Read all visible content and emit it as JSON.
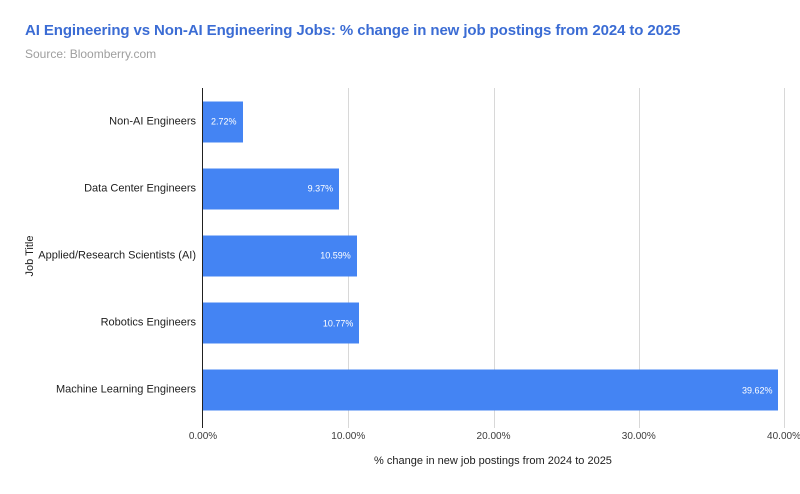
{
  "header": {
    "title": "AI Engineering vs Non-AI Engineering Jobs: % change in new job postings from 2024 to 2025",
    "source": "Source: Bloomberry.com"
  },
  "chart_data": {
    "type": "bar",
    "orientation": "horizontal",
    "title": "AI Engineering vs Non-AI Engineering Jobs: % change in new job postings from 2024 to 2025",
    "subtitle": "Source: Bloomberry.com",
    "categories": [
      "Non-AI Engineers",
      "Data Center Engineers",
      "Applied/Research Scientists (AI)",
      "Robotics Engineers",
      "Machine Learning Engineers"
    ],
    "values": [
      2.72,
      9.37,
      10.59,
      10.77,
      39.62
    ],
    "value_labels": [
      "2.72%",
      "9.37%",
      "10.59%",
      "10.77%",
      "39.62%"
    ],
    "xlabel": "% change in new job postings from 2024 to 2025",
    "ylabel": "Job Title",
    "xlim": [
      0,
      40
    ],
    "x_tick_values": [
      0,
      10,
      20,
      30,
      40
    ],
    "x_tick_labels": [
      "0.00%",
      "10.00%",
      "20.00%",
      "30.00%",
      "40.00%"
    ],
    "grid": true,
    "legend": "none",
    "bar_color": "#4484F3",
    "value_label_color": "#FFFFFF",
    "title_color": "#3B6CD4",
    "source_color": "#9E9E9E",
    "gridline_color": "#D8D8D8",
    "axis_line_color": "#212121"
  }
}
